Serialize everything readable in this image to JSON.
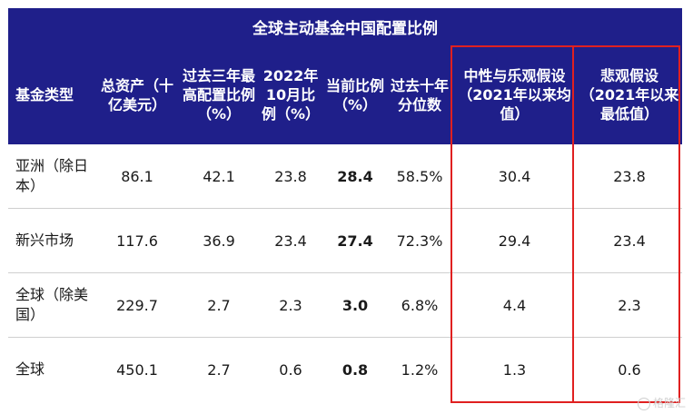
{
  "title": "全球主动基金中国配置比例",
  "columns": [
    "基金类型",
    "总资产（十亿美元）",
    "过去三年最高配置比例（%）",
    "2022年10月比例（%）",
    "当前比例（%）",
    "过去十年分位数",
    "中性与乐观假设（2021年以来均值）",
    "悲观假设（2021年以来最低值）"
  ],
  "rows": [
    [
      "亚洲（除日本）",
      "86.1",
      "42.1",
      "23.8",
      "28.4",
      "58.5%",
      "30.4",
      "23.8"
    ],
    [
      "新兴市场",
      "117.6",
      "36.9",
      "23.4",
      "27.4",
      "72.3%",
      "29.4",
      "23.4"
    ],
    [
      "全球（除美国）",
      "229.7",
      "2.7",
      "2.3",
      "3.0",
      "6.8%",
      "4.4",
      "2.3"
    ],
    [
      "全球",
      "450.1",
      "2.7",
      "0.6",
      "0.8",
      "1.2%",
      "1.3",
      "0.6"
    ]
  ],
  "highlight_color": "#e02020",
  "header_color": "#1f1f8a",
  "watermark": "格隆汇"
}
